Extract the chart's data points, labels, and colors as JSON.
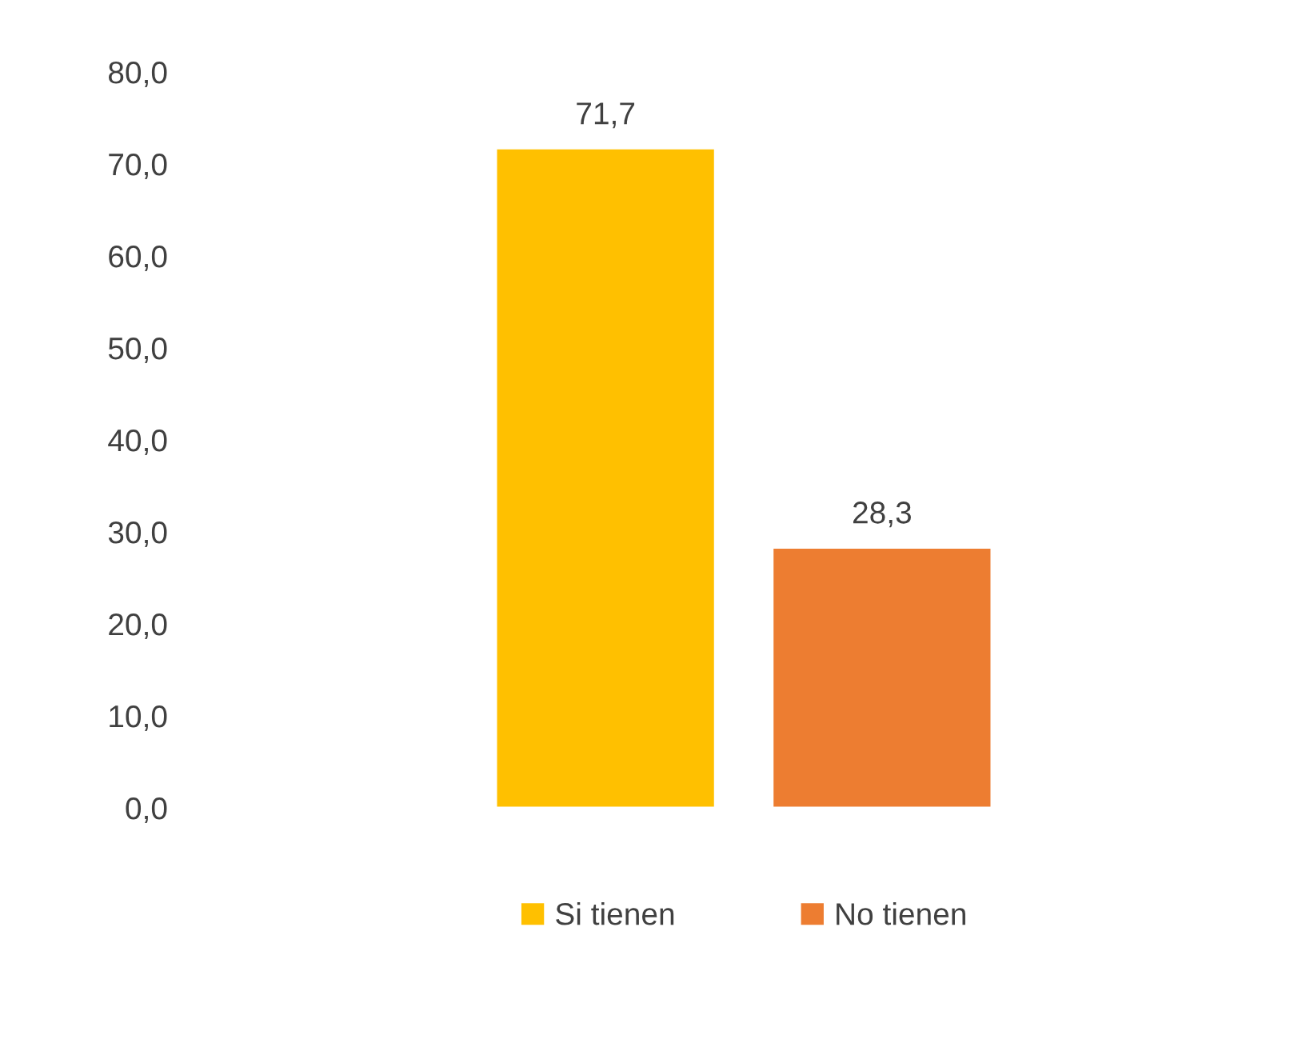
{
  "chart_data": {
    "type": "bar",
    "categories": [
      null
    ],
    "series": [
      {
        "name": "Si tienen",
        "color": "#ffc000",
        "values": [
          71.7
        ],
        "value_labels": [
          "71,7"
        ]
      },
      {
        "name": "No tienen",
        "color": "#ed7d31",
        "values": [
          28.3
        ],
        "value_labels": [
          "28,3"
        ]
      }
    ],
    "ylim": [
      0,
      80
    ],
    "yticks": [
      {
        "value": 0,
        "label": "0,0"
      },
      {
        "value": 10,
        "label": "10,0"
      },
      {
        "value": 20,
        "label": "20,0"
      },
      {
        "value": 30,
        "label": "30,0"
      },
      {
        "value": 40,
        "label": "40,0"
      },
      {
        "value": 50,
        "label": "50,0"
      },
      {
        "value": 60,
        "label": "60,0"
      },
      {
        "value": 70,
        "label": "70,0"
      },
      {
        "value": 80,
        "label": "80,0"
      }
    ],
    "grid": false,
    "legend": "bottom"
  }
}
